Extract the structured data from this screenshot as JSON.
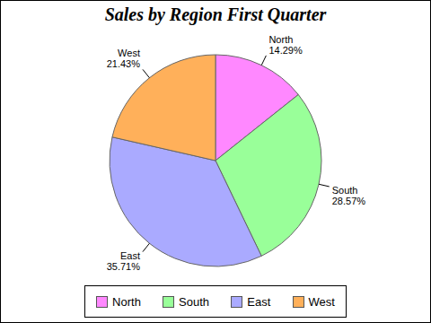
{
  "chart_data": {
    "type": "pie",
    "title": "Sales by Region First Quarter",
    "categories": [
      "North",
      "South",
      "East",
      "West"
    ],
    "values": [
      14.29,
      28.57,
      35.71,
      21.43
    ],
    "value_labels": [
      "14.29%",
      "28.57%",
      "35.71%",
      "21.43%"
    ],
    "colors": [
      "#ff88ff",
      "#99ff99",
      "#aaaaff",
      "#ffb05a"
    ],
    "data_labels": true,
    "legend": "bottom"
  }
}
